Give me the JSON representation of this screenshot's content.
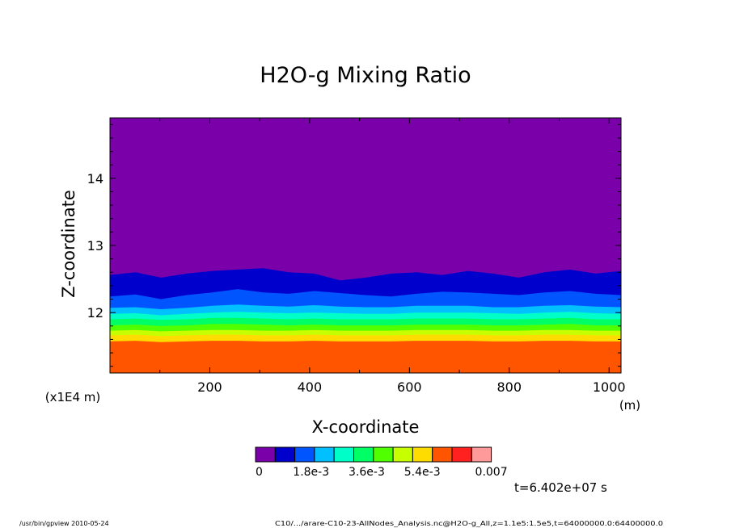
{
  "chart_data": {
    "type": "heatmap",
    "title": "H2O-g Mixing Ratio",
    "xlabel": "X-coordinate",
    "ylabel": "Z-coordinate",
    "x_units": "(m)",
    "y_units": "(x1E4 m)",
    "xlim": [
      0,
      1024
    ],
    "ylim": [
      11.1,
      14.9
    ],
    "x_ticks": [
      200,
      400,
      600,
      800,
      1000
    ],
    "y_ticks": [
      12,
      13,
      14
    ],
    "colorbar": {
      "levels": [
        0,
        0.0006,
        0.0012,
        0.0018,
        0.0024,
        0.003,
        0.0036,
        0.0042,
        0.0048,
        0.0054,
        0.006,
        0.0066,
        0.007
      ],
      "tick_labels": [
        "0",
        "1.8e-3",
        "3.6e-3",
        "5.4e-3",
        "0.007"
      ],
      "colors": [
        "#7a00aa",
        "#0000cc",
        "#0055ff",
        "#00c0ff",
        "#00ffc8",
        "#00ff64",
        "#50ff00",
        "#c8ff00",
        "#ffdc00",
        "#ff5500",
        "#ff2020",
        "#ff9a9a"
      ]
    },
    "bands": [
      {
        "color_index": 0,
        "upper_z": [
          14.9,
          14.9,
          14.9,
          14.9,
          14.9,
          14.9,
          14.9,
          14.9,
          14.9,
          14.9,
          14.9,
          14.9,
          14.9,
          14.9,
          14.9,
          14.9,
          14.9,
          14.9,
          14.9,
          14.9,
          14.9
        ]
      },
      {
        "color_index": 1,
        "upper_z": [
          12.56,
          12.6,
          12.52,
          12.58,
          12.62,
          12.64,
          12.66,
          12.6,
          12.58,
          12.48,
          12.52,
          12.58,
          12.6,
          12.56,
          12.62,
          12.58,
          12.52,
          12.6,
          12.64,
          12.58,
          12.62
        ]
      },
      {
        "color_index": 2,
        "upper_z": [
          12.24,
          12.27,
          12.2,
          12.26,
          12.3,
          12.35,
          12.3,
          12.28,
          12.32,
          12.29,
          12.26,
          12.24,
          12.28,
          12.31,
          12.3,
          12.28,
          12.26,
          12.3,
          12.32,
          12.28,
          12.26
        ]
      },
      {
        "color_index": 3,
        "upper_z": [
          12.07,
          12.08,
          12.05,
          12.07,
          12.1,
          12.12,
          12.1,
          12.09,
          12.11,
          12.09,
          12.08,
          12.08,
          12.1,
          12.1,
          12.1,
          12.08,
          12.08,
          12.1,
          12.11,
          12.09,
          12.08
        ]
      },
      {
        "color_index": 4,
        "upper_z": [
          11.98,
          11.99,
          11.96,
          11.98,
          12.0,
          12.01,
          12.0,
          11.99,
          12.0,
          11.99,
          11.98,
          11.98,
          12.0,
          12.0,
          12.0,
          11.99,
          11.98,
          12.0,
          12.01,
          11.99,
          11.98
        ]
      },
      {
        "color_index": 5,
        "upper_z": [
          11.9,
          11.91,
          11.89,
          11.9,
          11.92,
          11.92,
          11.91,
          11.9,
          11.91,
          11.9,
          11.9,
          11.9,
          11.91,
          11.91,
          11.91,
          11.9,
          11.9,
          11.91,
          11.92,
          11.9,
          11.9
        ]
      },
      {
        "color_index": 6,
        "upper_z": [
          11.81,
          11.82,
          11.8,
          11.81,
          11.83,
          11.83,
          11.82,
          11.81,
          11.82,
          11.81,
          11.81,
          11.81,
          11.82,
          11.82,
          11.82,
          11.81,
          11.81,
          11.82,
          11.83,
          11.81,
          11.81
        ]
      },
      {
        "color_index": 7,
        "upper_z": [
          11.73,
          11.74,
          11.72,
          11.73,
          11.74,
          11.74,
          11.73,
          11.73,
          11.74,
          11.73,
          11.73,
          11.73,
          11.74,
          11.74,
          11.74,
          11.73,
          11.73,
          11.74,
          11.74,
          11.73,
          11.73
        ]
      },
      {
        "color_index": 8,
        "upper_z": [
          11.66,
          11.67,
          11.65,
          11.66,
          11.67,
          11.67,
          11.66,
          11.66,
          11.67,
          11.66,
          11.66,
          11.66,
          11.67,
          11.67,
          11.67,
          11.66,
          11.66,
          11.67,
          11.67,
          11.66,
          11.66
        ]
      },
      {
        "color_index": 9,
        "upper_z": [
          11.57,
          11.58,
          11.56,
          11.57,
          11.58,
          11.58,
          11.57,
          11.57,
          11.58,
          11.57,
          11.57,
          11.57,
          11.58,
          11.58,
          11.58,
          11.57,
          11.57,
          11.58,
          11.58,
          11.57,
          11.57
        ]
      }
    ],
    "time_label": "t=6.402e+07 s"
  },
  "footer": {
    "left": "/usr/bin/gpview  2010-05-24",
    "right": "C10/.../arare-C10-23-AllNodes_Analysis.nc@H2O-g_All,z=1.1e5:1.5e5,t=64000000.0:64400000.0"
  }
}
